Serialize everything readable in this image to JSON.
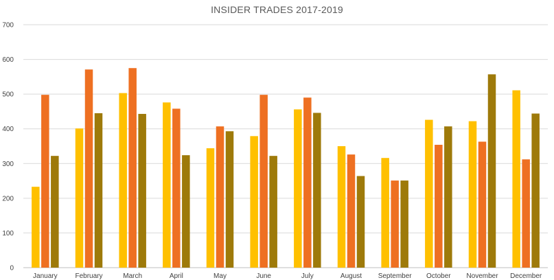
{
  "chart_data": {
    "type": "bar",
    "title": "INSIDER TRADES 2017-2019",
    "categories": [
      "January",
      "February",
      "March",
      "April",
      "May",
      "June",
      "July",
      "August",
      "September",
      "October",
      "November",
      "December"
    ],
    "series": [
      {
        "color": "#FFC000",
        "values": [
          233,
          401,
          503,
          476,
          344,
          379,
          456,
          350,
          316,
          426,
          422,
          511
        ]
      },
      {
        "color": "#EE7022",
        "values": [
          498,
          571,
          575,
          458,
          407,
          498,
          490,
          326,
          251,
          354,
          363,
          312
        ]
      },
      {
        "color": "#9E7A0A",
        "values": [
          322,
          445,
          443,
          324,
          393,
          322,
          446,
          264,
          251,
          407,
          557,
          444
        ]
      }
    ],
    "ylim": [
      0,
      700
    ],
    "yticks": [
      0,
      100,
      200,
      300,
      400,
      500,
      600,
      700
    ],
    "grid": true,
    "legend": "none"
  }
}
